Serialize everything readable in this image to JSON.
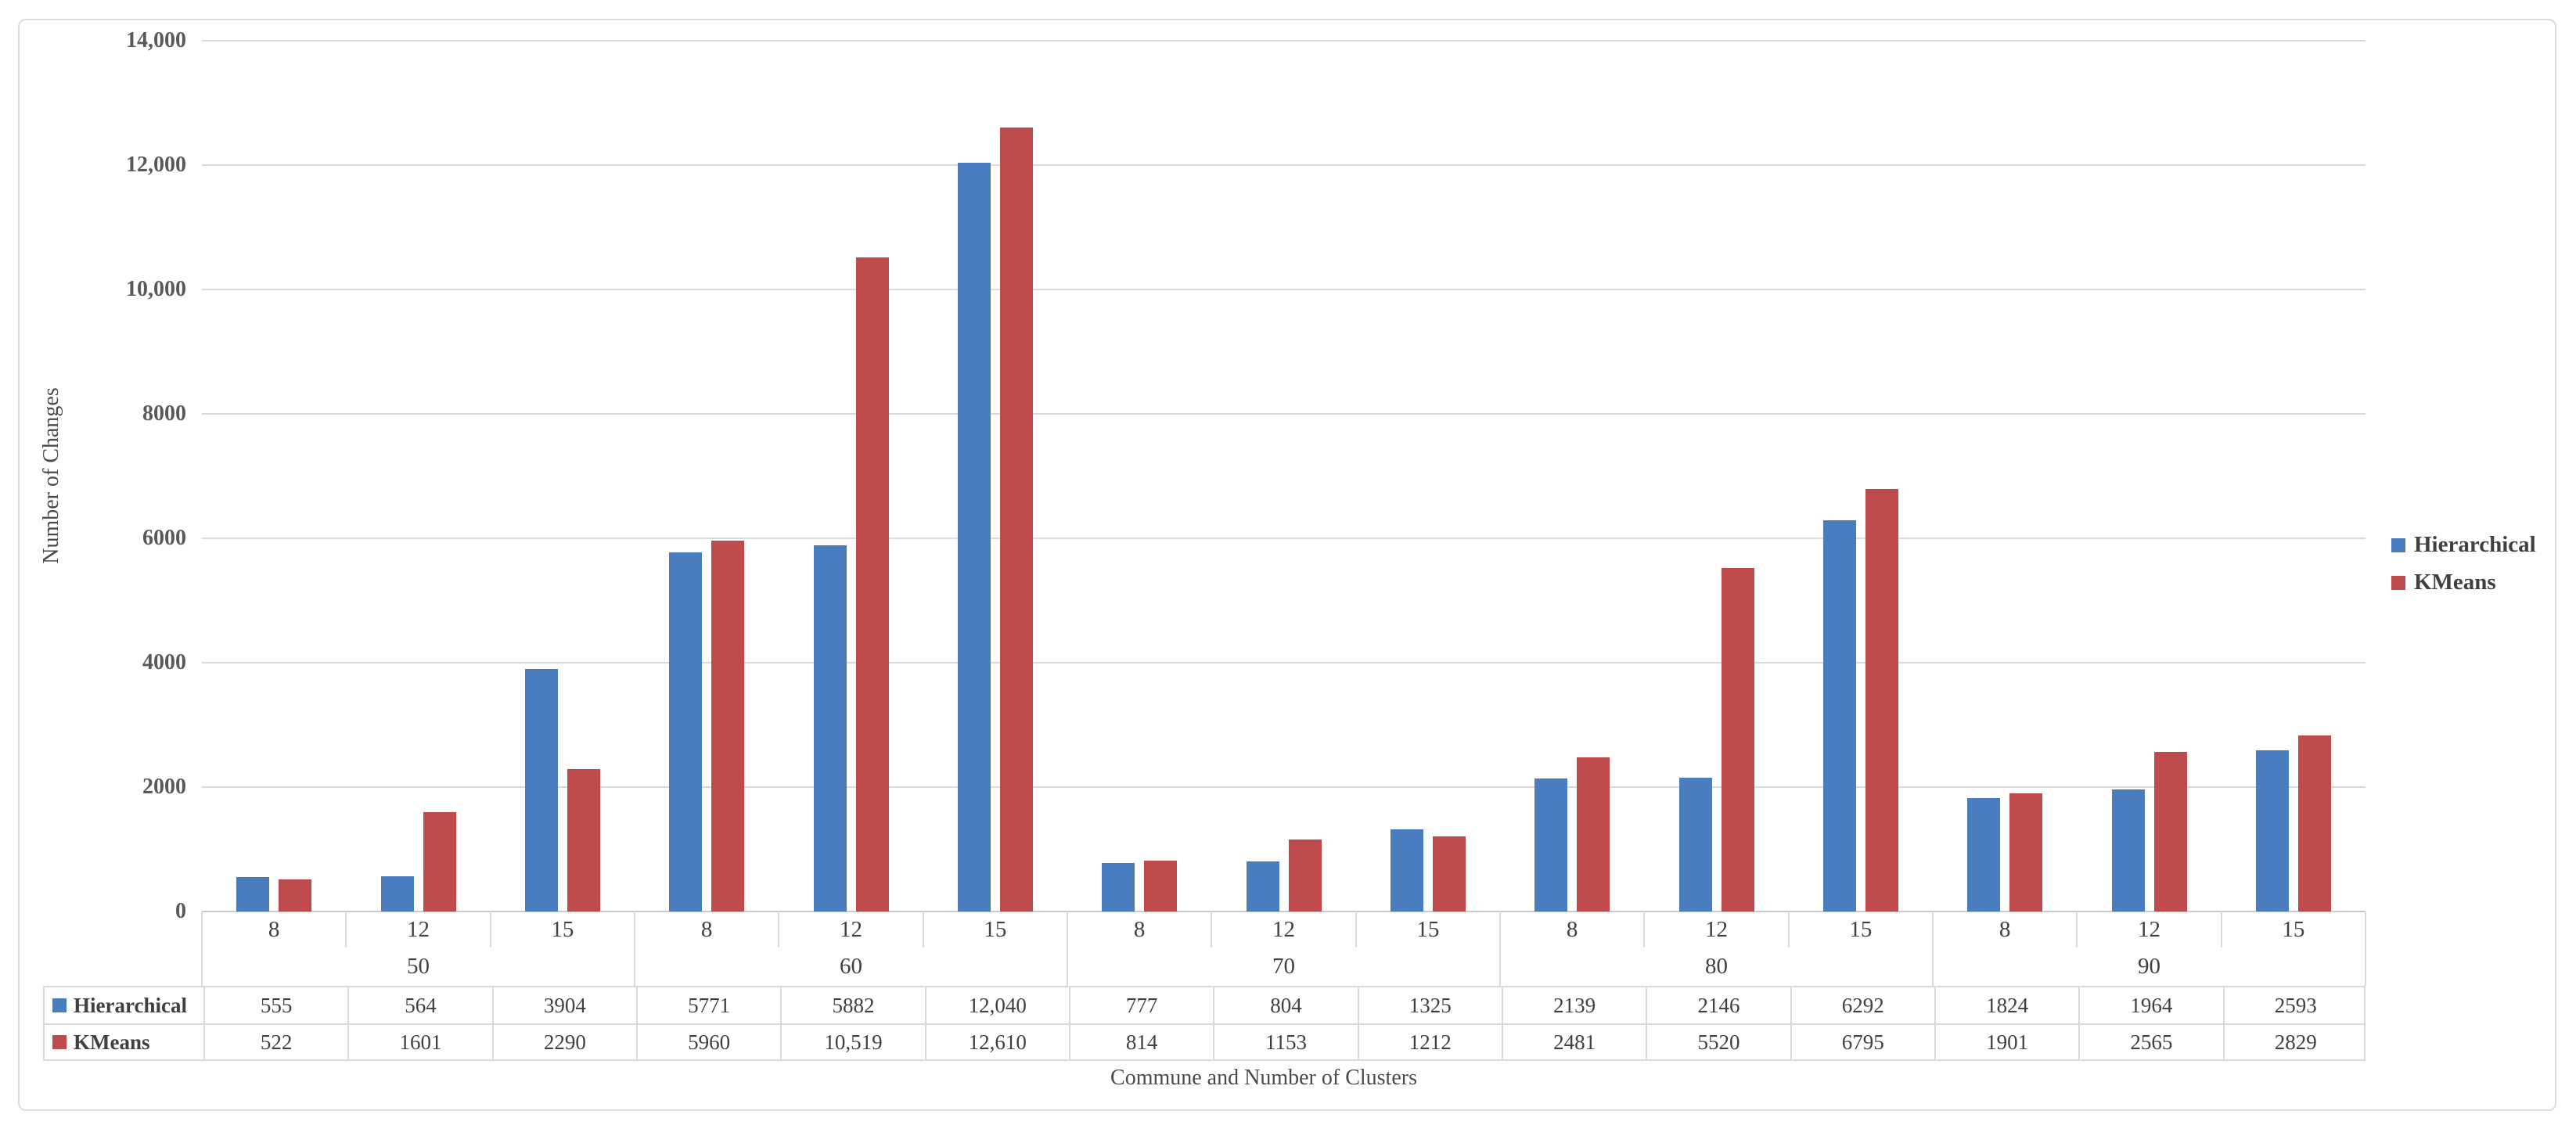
{
  "chart_data": {
    "type": "bar",
    "title": "",
    "xlabel": "Commune and Number of Clusters",
    "ylabel": "Number of Changes",
    "ylim": [
      0,
      14000
    ],
    "ytick_step": 2000,
    "yticks": [
      {
        "value": 14000,
        "label": "14,000"
      },
      {
        "value": 12000,
        "label": "12,000"
      },
      {
        "value": 10000,
        "label": "10,000"
      },
      {
        "value": 8000,
        "label": "8000"
      },
      {
        "value": 6000,
        "label": "6000"
      },
      {
        "value": 4000,
        "label": "4000"
      },
      {
        "value": 2000,
        "label": "2000"
      },
      {
        "value": 0,
        "label": "0"
      }
    ],
    "grid": "horizontal",
    "legend_position": "right",
    "axis_levels": [
      "number_of_clusters",
      "commune"
    ],
    "groups": [
      {
        "commune": "50",
        "clusters": [
          "8",
          "12",
          "15"
        ]
      },
      {
        "commune": "60",
        "clusters": [
          "8",
          "12",
          "15"
        ]
      },
      {
        "commune": "70",
        "clusters": [
          "8",
          "12",
          "15"
        ]
      },
      {
        "commune": "80",
        "clusters": [
          "8",
          "12",
          "15"
        ]
      },
      {
        "commune": "90",
        "clusters": [
          "8",
          "12",
          "15"
        ]
      }
    ],
    "series": [
      {
        "name": "Hierarchical",
        "color": "#4a7dbf",
        "values": [
          555,
          564,
          3904,
          5771,
          5882,
          12040,
          777,
          804,
          1325,
          2139,
          2146,
          6292,
          1824,
          1964,
          2593
        ],
        "display_values": [
          "555",
          "564",
          "3904",
          "5771",
          "5882",
          "12,040",
          "777",
          "804",
          "1325",
          "2139",
          "2146",
          "6292",
          "1824",
          "1964",
          "2593"
        ]
      },
      {
        "name": "KMeans",
        "color": "#bf4b4c",
        "values": [
          522,
          1601,
          2290,
          5960,
          10519,
          12610,
          814,
          1153,
          1212,
          2481,
          5520,
          6795,
          1901,
          2565,
          2829
        ],
        "display_values": [
          "522",
          "1601",
          "2290",
          "5960",
          "10,519",
          "12,610",
          "814",
          "1153",
          "1212",
          "2481",
          "5520",
          "6795",
          "1901",
          "2565",
          "2829"
        ]
      }
    ]
  },
  "colors": {
    "gridline": "#dadada",
    "axis_line": "#c9c9c9",
    "border": "#dcdcdc",
    "tick_text": "#595959",
    "label_text": "#404040"
  }
}
